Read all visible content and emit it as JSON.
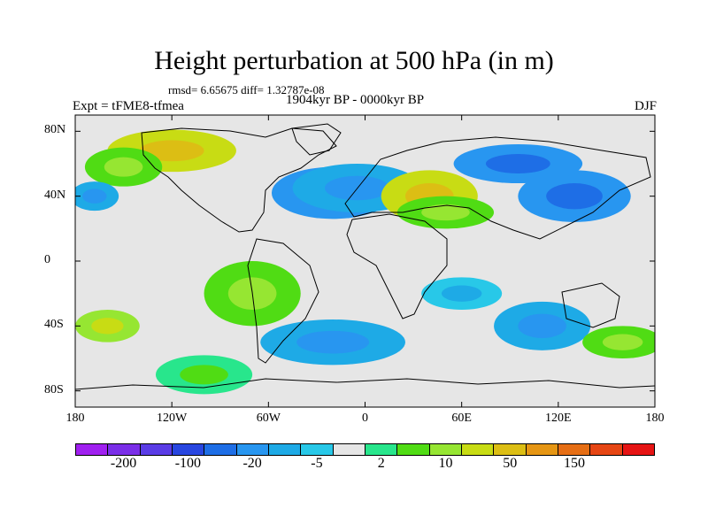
{
  "title": "Height perturbation at 500 hPa (in m)",
  "stats_line": "rmsd= 6.65675 diff= 1.32787e-08",
  "experiment_label": "Expt = tFME8-tfmea",
  "period_label": "1904kyr BP - 0000kyr BP",
  "season_label": "DJF",
  "chart_data": {
    "type": "heatmap",
    "description_field": "500 hPa geopotential height perturbation (m)",
    "x_range": [
      -180,
      180
    ],
    "y_range": [
      -90,
      90
    ],
    "x_ticks": [
      "180",
      "120W",
      "60W",
      "0",
      "60E",
      "120E",
      "180"
    ],
    "y_ticks": [
      "80N",
      "40N",
      "0",
      "40S",
      "80S"
    ],
    "y_tick_values": [
      80,
      40,
      0,
      -40,
      -80
    ],
    "x_tick_values": [
      -180,
      -120,
      -60,
      0,
      60,
      120,
      180
    ],
    "colorbar": {
      "labels": [
        "-200",
        "-100",
        "-20",
        "-5",
        "2",
        "10",
        "50",
        "150"
      ],
      "colors": [
        "#a020f0",
        "#7a2ee8",
        "#5a3ce6",
        "#2846e0",
        "#1e6ee6",
        "#2896f0",
        "#1eaae6",
        "#28c8e8",
        "#e6e6e6",
        "#28e68c",
        "#50dc14",
        "#96e632",
        "#c8dc14",
        "#dcbe14",
        "#e69614",
        "#e66e14",
        "#e64614",
        "#e61414"
      ]
    },
    "anomalies": [
      {
        "lon": -120,
        "lat": 68,
        "rlon": 40,
        "rlat": 13,
        "level": 12
      },
      {
        "lon": -150,
        "lat": 58,
        "rlon": 24,
        "rlat": 12,
        "level": 10
      },
      {
        "lon": -20,
        "lat": 42,
        "rlon": 38,
        "rlat": 16,
        "level": 5
      },
      {
        "lon": -5,
        "lat": 45,
        "rlon": 40,
        "rlat": 15,
        "level": 6
      },
      {
        "lon": 40,
        "lat": 40,
        "rlon": 30,
        "rlat": 16,
        "level": 12
      },
      {
        "lon": 50,
        "lat": 30,
        "rlon": 30,
        "rlat": 10,
        "level": 10
      },
      {
        "lon": 130,
        "lat": 40,
        "rlon": 35,
        "rlat": 16,
        "level": 5
      },
      {
        "lon": 95,
        "lat": 60,
        "rlon": 40,
        "rlat": 12,
        "level": 5
      },
      {
        "lon": -168,
        "lat": 40,
        "rlon": 15,
        "rlat": 9,
        "level": 6
      },
      {
        "lon": -70,
        "lat": -20,
        "rlon": 30,
        "rlat": 20,
        "level": 10
      },
      {
        "lon": -160,
        "lat": -40,
        "rlon": 20,
        "rlat": 10,
        "level": 11
      },
      {
        "lon": -20,
        "lat": -50,
        "rlon": 45,
        "rlat": 14,
        "level": 6
      },
      {
        "lon": 60,
        "lat": -20,
        "rlon": 25,
        "rlat": 10,
        "level": 7
      },
      {
        "lon": 110,
        "lat": -40,
        "rlon": 30,
        "rlat": 15,
        "level": 6
      },
      {
        "lon": 160,
        "lat": -50,
        "rlon": 25,
        "rlat": 10,
        "level": 10
      },
      {
        "lon": -100,
        "lat": -70,
        "rlon": 30,
        "rlat": 12,
        "level": 9
      }
    ]
  }
}
